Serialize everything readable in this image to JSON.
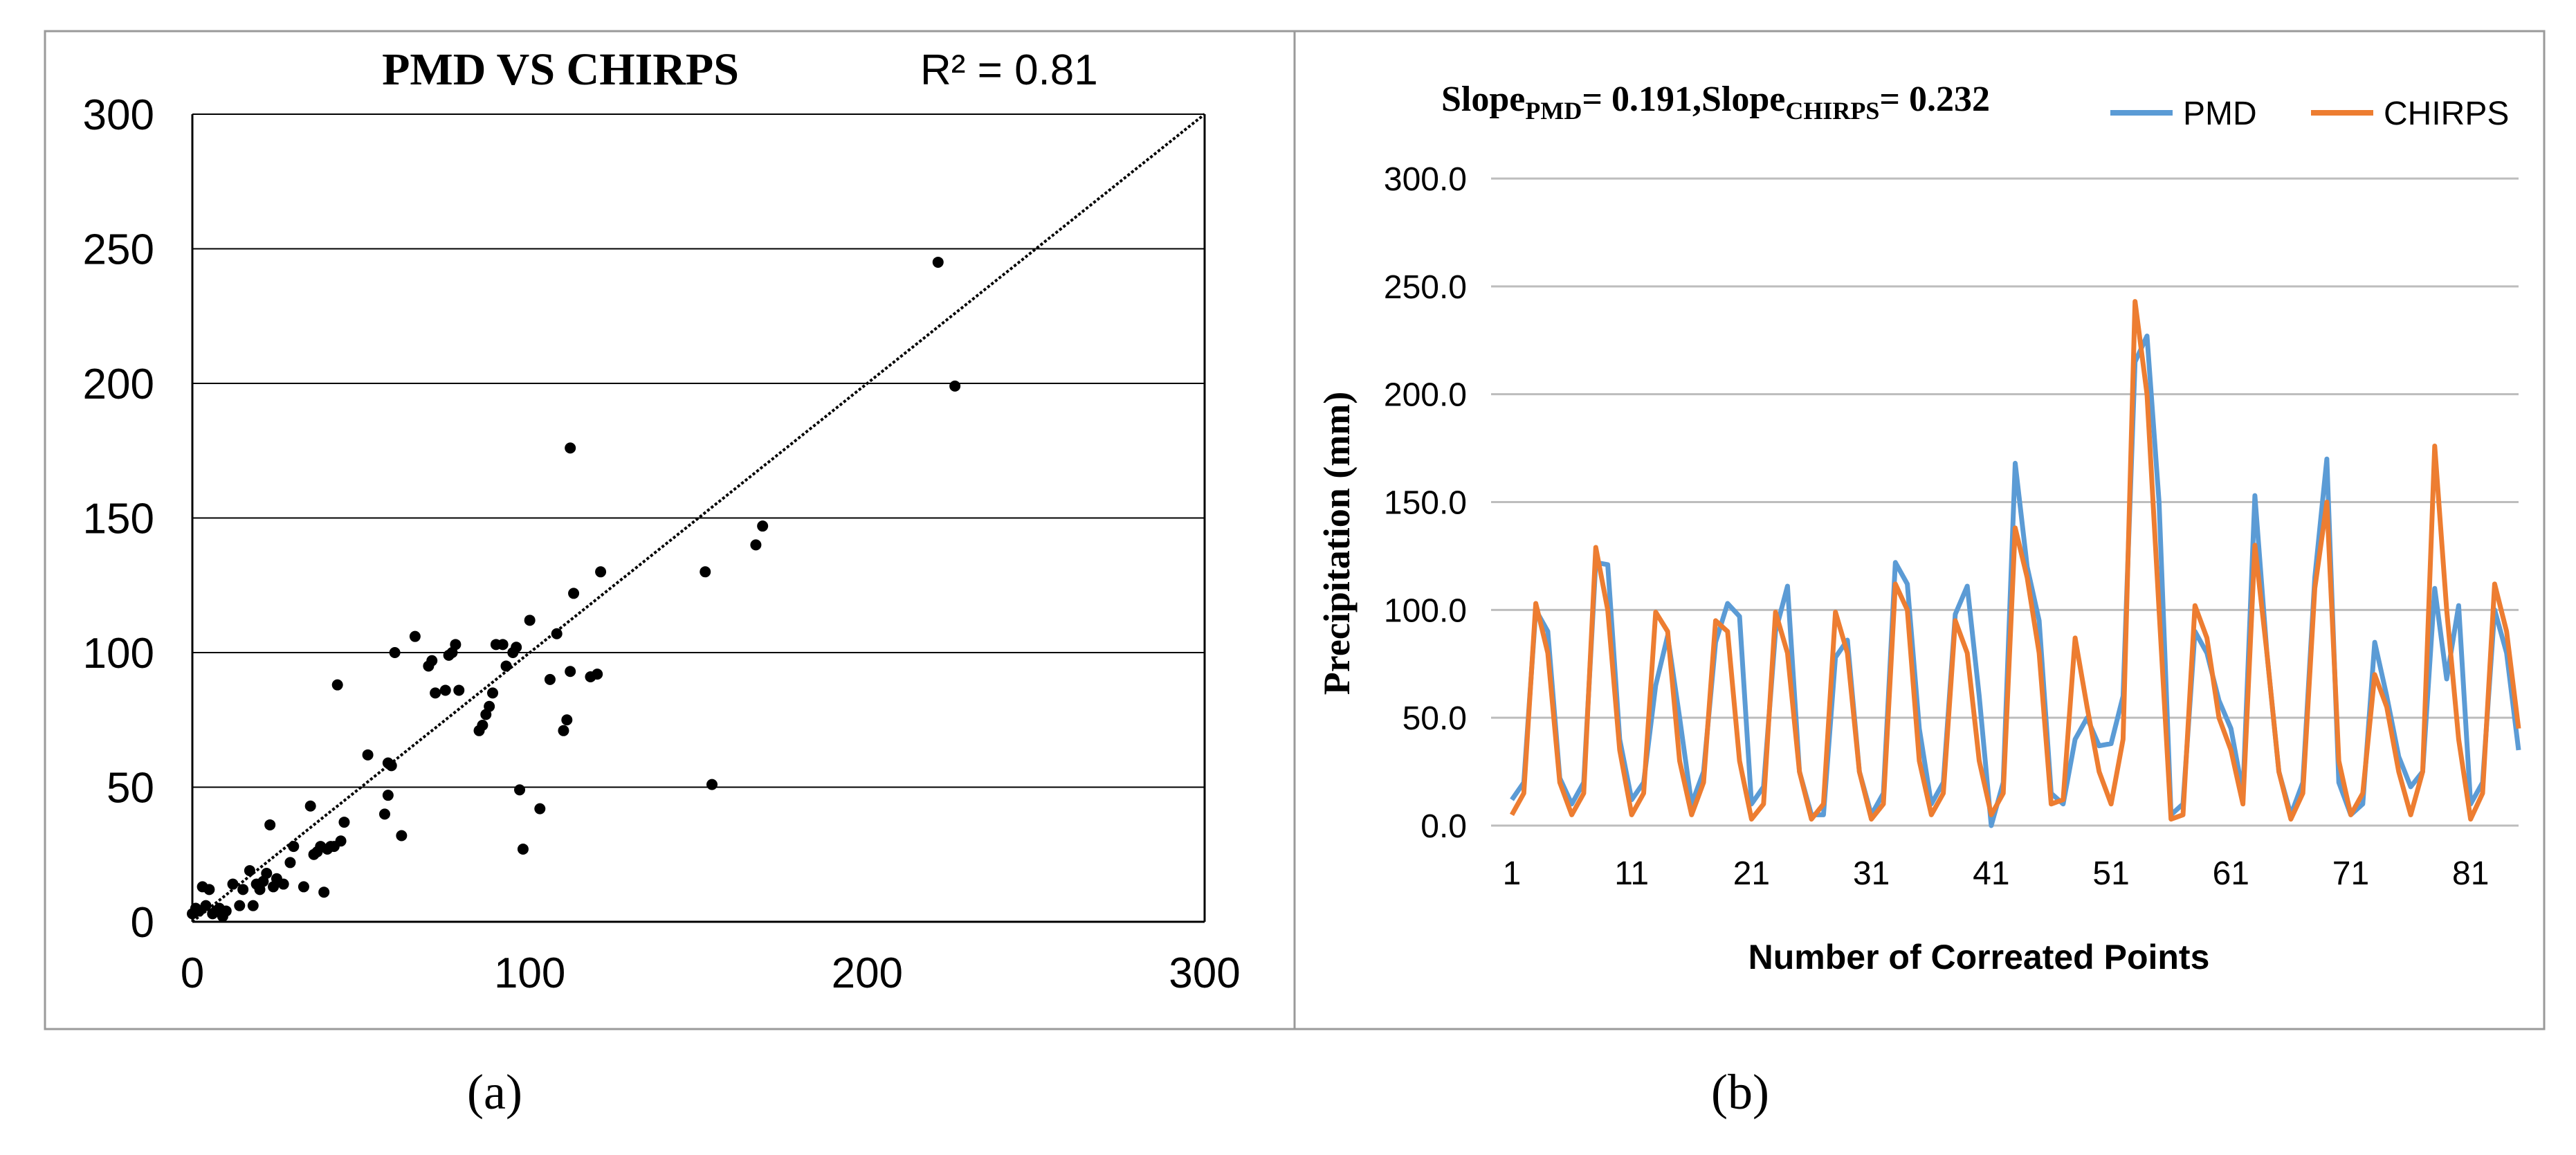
{
  "chart_data": [
    {
      "type": "scatter",
      "panel_label": "(a)",
      "title": "PMD VS CHIRPS",
      "r2_text": "R² = 0.81",
      "xlim": [
        0,
        300
      ],
      "ylim": [
        0,
        300
      ],
      "xticks": [
        "0",
        "100",
        "200",
        "300"
      ],
      "yticks": [
        "0",
        "50",
        "100",
        "150",
        "200",
        "250",
        "300"
      ],
      "trendline": {
        "x": [
          0,
          300
        ],
        "y": [
          0,
          300
        ]
      },
      "x": [
        0,
        1,
        2,
        3,
        4,
        5,
        6,
        7,
        8,
        9,
        10,
        12,
        14,
        15,
        17,
        18,
        19,
        20,
        21,
        22,
        23,
        24,
        25,
        27,
        29,
        30,
        33,
        35,
        36,
        37,
        38,
        39,
        40,
        41,
        42,
        43,
        44,
        45,
        52,
        57,
        58,
        58,
        59,
        60,
        62,
        66,
        70,
        71,
        72,
        75,
        76,
        77,
        78,
        79,
        85,
        86,
        87,
        88,
        89,
        90,
        92,
        93,
        95,
        96,
        97,
        98,
        100,
        103,
        106,
        108,
        110,
        111,
        112,
        112,
        113,
        118,
        120,
        121,
        152,
        154,
        167,
        169,
        221,
        226
      ],
      "y": [
        3,
        5,
        4,
        13,
        6,
        12,
        3,
        4,
        5,
        2,
        4,
        14,
        6,
        12,
        19,
        6,
        14,
        12,
        15,
        18,
        36,
        13,
        16,
        14,
        22,
        28,
        13,
        43,
        25,
        26,
        28,
        11,
        27,
        28,
        28,
        88,
        30,
        37,
        62,
        40,
        47,
        59,
        58,
        100,
        32,
        106,
        95,
        97,
        85,
        86,
        99,
        100,
        103,
        86,
        71,
        73,
        77,
        80,
        85,
        103,
        103,
        95,
        100,
        102,
        49,
        27,
        112,
        42,
        90,
        107,
        71,
        75,
        93,
        176,
        122,
        91,
        92,
        130,
        130,
        51,
        140,
        147,
        245,
        199
      ]
    },
    {
      "type": "line",
      "panel_label": "(b)",
      "title": "Slope",
      "title_pmd_sub": "PMD",
      "title_mid": "= 0.191,Slope",
      "title_chirps_sub": "CHIRPS",
      "title_end": "= 0.232",
      "xlabel": "Number of Correated Points",
      "ylabel": "Precipitation (mm)",
      "ylim": [
        0,
        300
      ],
      "yticks": [
        "0.0",
        "50.0",
        "100.0",
        "150.0",
        "200.0",
        "250.0",
        "300.0"
      ],
      "xticks": [
        "1",
        "11",
        "21",
        "31",
        "41",
        "51",
        "61",
        "71",
        "81"
      ],
      "series": [
        {
          "name": "PMD",
          "color": "#5b9bd5",
          "values": [
            12,
            20,
            100,
            90,
            22,
            10,
            20,
            122,
            121,
            40,
            12,
            20,
            65,
            88,
            50,
            10,
            25,
            85,
            103,
            97,
            10,
            18,
            90,
            111,
            25,
            5,
            5,
            78,
            86,
            25,
            5,
            15,
            122,
            112,
            45,
            10,
            20,
            98,
            111,
            60,
            0,
            20,
            168,
            120,
            95,
            15,
            10,
            40,
            50,
            37,
            38,
            60,
            215,
            227,
            150,
            5,
            10,
            90,
            80,
            58,
            45,
            15,
            153,
            80,
            25,
            5,
            20,
            115,
            170,
            20,
            5,
            10,
            85,
            60,
            32,
            18,
            25,
            110,
            68,
            102,
            10,
            20,
            100,
            80,
            35
          ]
        },
        {
          "name": "CHIRPS",
          "color": "#ed7d31",
          "values": [
            5,
            15,
            103,
            80,
            20,
            5,
            15,
            129,
            100,
            35,
            5,
            15,
            99,
            90,
            30,
            5,
            20,
            95,
            90,
            30,
            3,
            10,
            99,
            80,
            25,
            3,
            10,
            99,
            80,
            25,
            3,
            10,
            112,
            100,
            30,
            5,
            15,
            95,
            80,
            30,
            5,
            15,
            138,
            115,
            80,
            10,
            12,
            87,
            55,
            25,
            10,
            40,
            243,
            200,
            100,
            3,
            5,
            102,
            87,
            50,
            35,
            10,
            130,
            80,
            25,
            3,
            15,
            110,
            150,
            30,
            5,
            15,
            70,
            55,
            25,
            5,
            25,
            176,
            100,
            40,
            3,
            15,
            112,
            90,
            45
          ]
        }
      ]
    }
  ]
}
